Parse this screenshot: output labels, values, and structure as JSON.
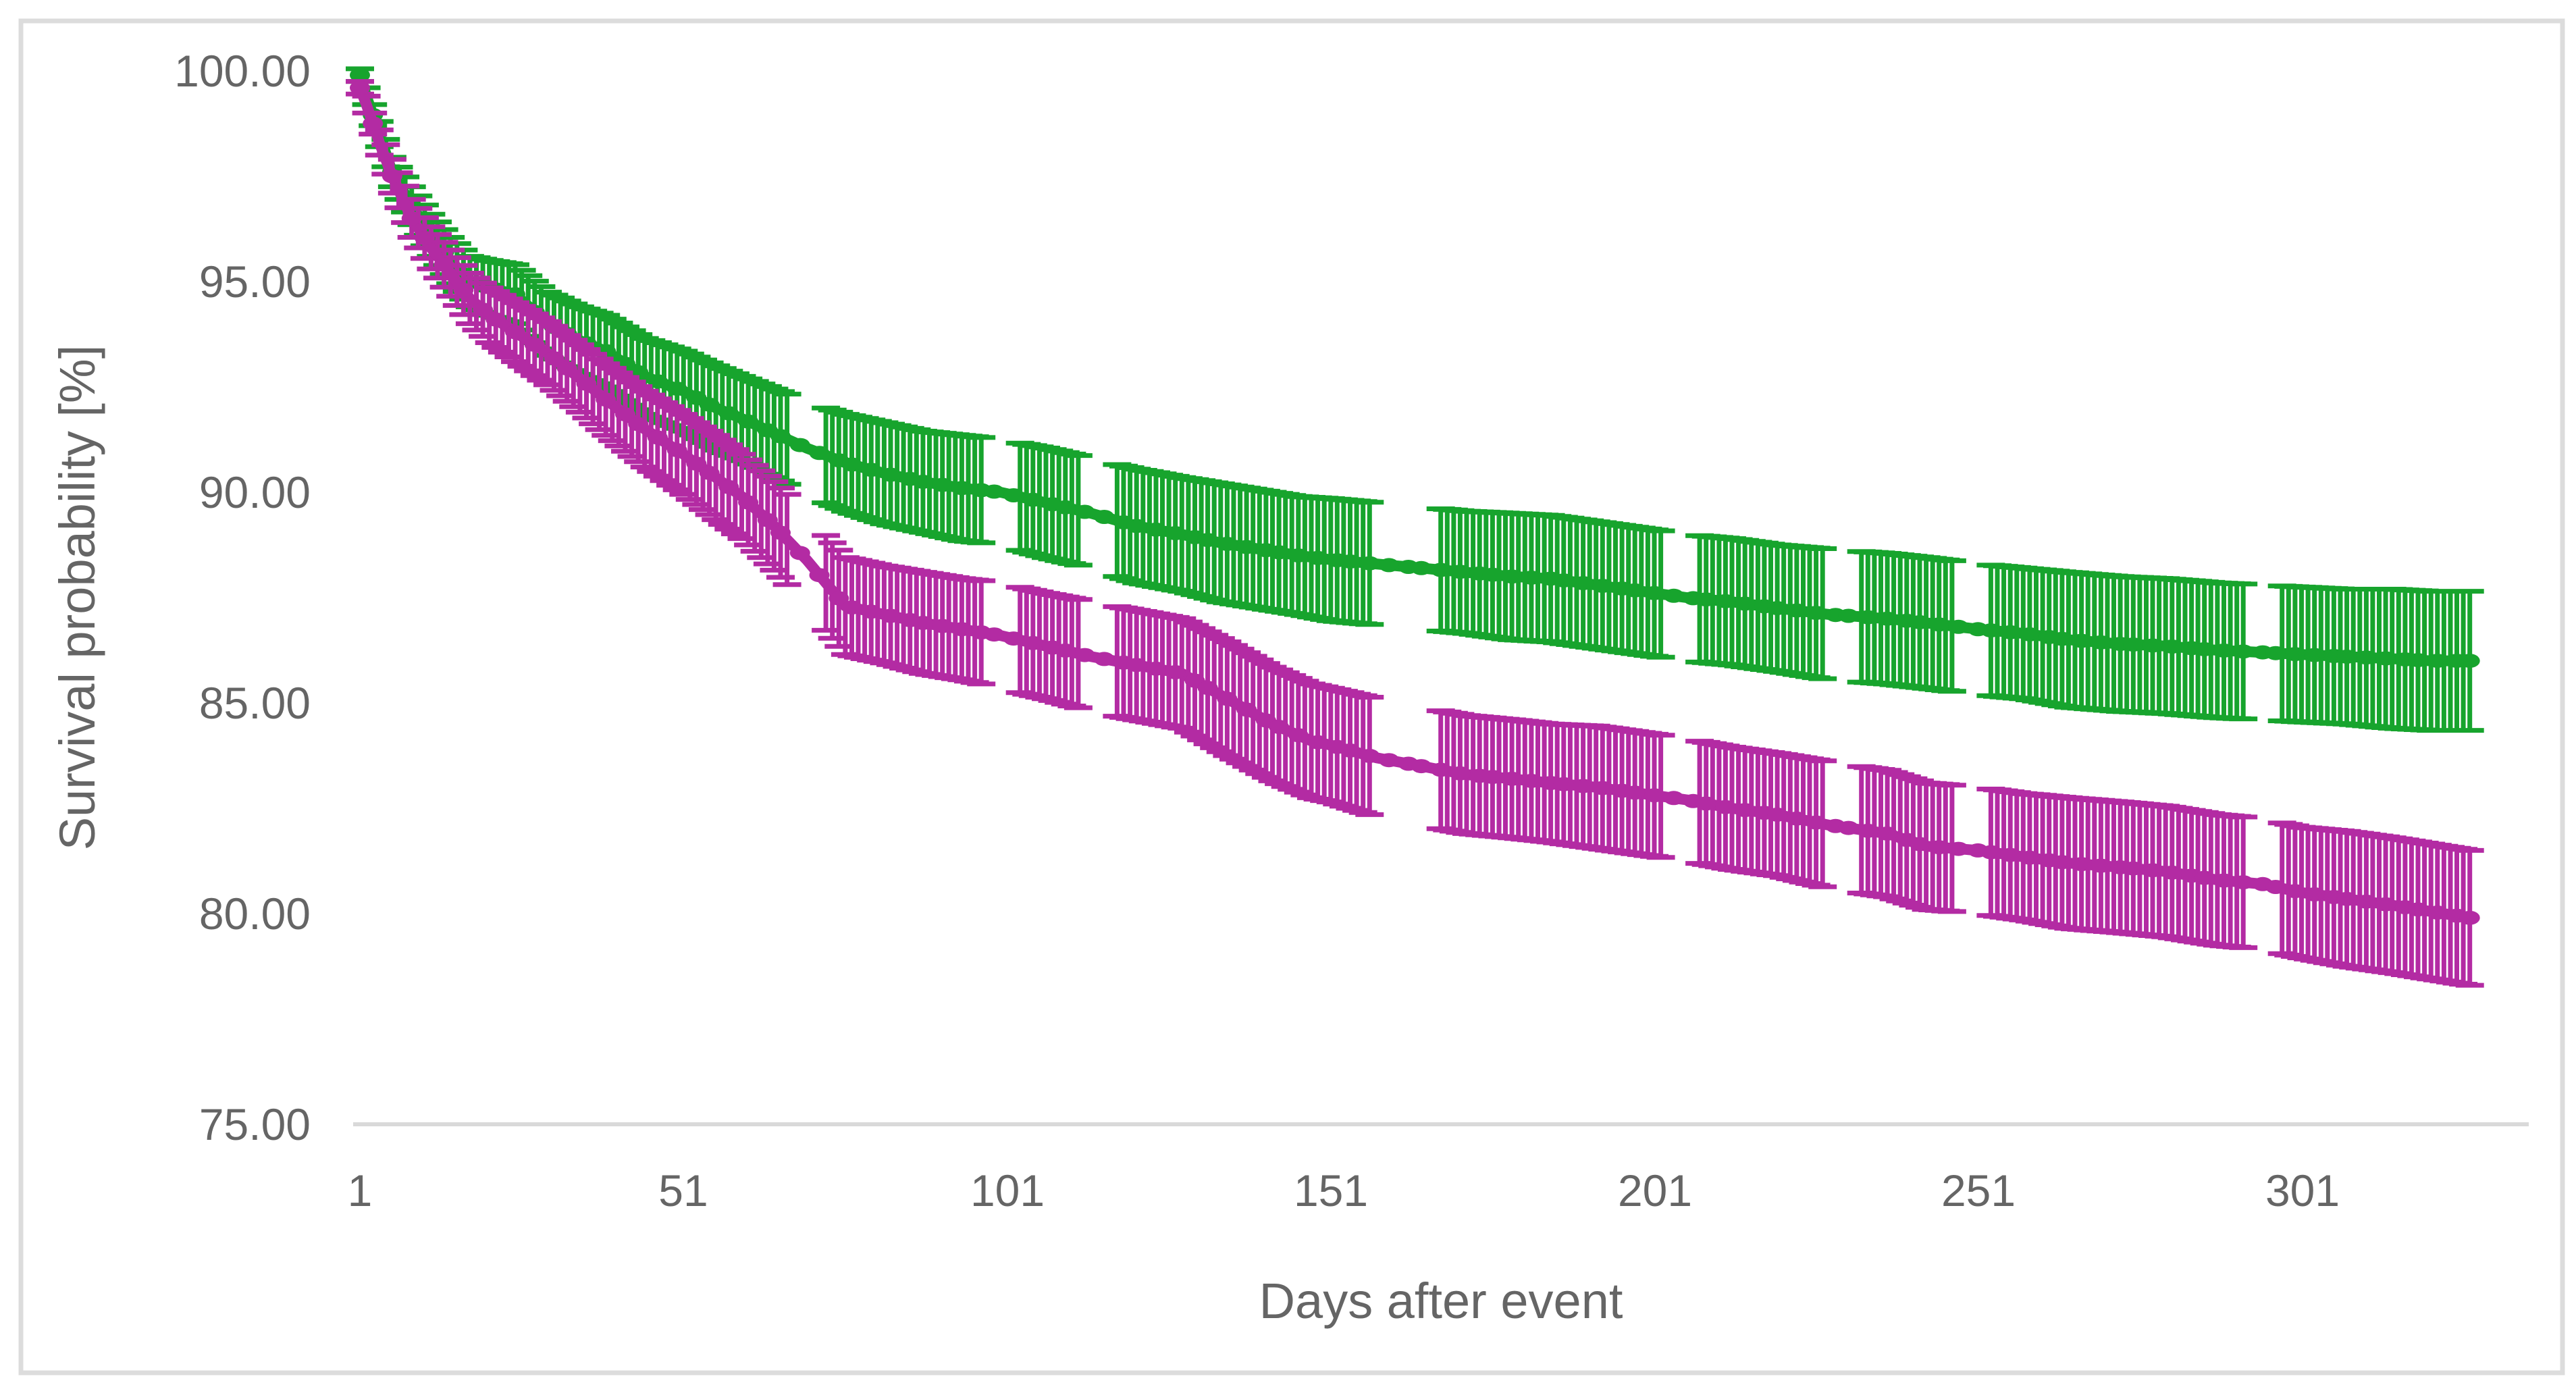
{
  "chart_data": {
    "type": "line",
    "title": "",
    "xlabel": "Days after event",
    "ylabel": "Survival probability [%]",
    "x_tick_labels": [
      "1",
      "51",
      "101",
      "151",
      "201",
      "251",
      "301"
    ],
    "x_tick_values": [
      1,
      51,
      101,
      151,
      201,
      251,
      301
    ],
    "y_tick_labels": [
      "100.00",
      "95.00",
      "90.00",
      "85.00",
      "80.00",
      "75.00"
    ],
    "y_tick_values": [
      100,
      95,
      90,
      85,
      80,
      75
    ],
    "xlim": [
      1,
      334
    ],
    "ylim": [
      75,
      100
    ],
    "grid": "off",
    "legend": "none",
    "error_bars": "vertical, per-day, with caps",
    "marker_style": "filled elliptical dots merged into thick line",
    "series": [
      {
        "name": "upper-green-survival-curve",
        "color": "#17A42D",
        "days": [
          1,
          2,
          4,
          6,
          9,
          12,
          15,
          18,
          21,
          25,
          30,
          35,
          39,
          45,
          51,
          56,
          60,
          65,
          70,
          76,
          82,
          88,
          94,
          100,
          107,
          114,
          121,
          128,
          134,
          140,
          146,
          151,
          158,
          165,
          172,
          179,
          185,
          192,
          199,
          206,
          213,
          220,
          228,
          237,
          243,
          251,
          258,
          265,
          273,
          280,
          288,
          295,
          301,
          308,
          315,
          321,
          327
        ],
        "values": [
          99.9,
          99.4,
          98.5,
          97.6,
          96.8,
          96.1,
          95.5,
          95.0,
          94.85,
          94.7,
          94.0,
          93.6,
          93.35,
          92.75,
          92.4,
          92.0,
          91.75,
          91.4,
          91.05,
          90.7,
          90.45,
          90.25,
          90.1,
          90.0,
          89.75,
          89.5,
          89.2,
          89.0,
          88.8,
          88.65,
          88.5,
          88.4,
          88.3,
          88.2,
          88.1,
          88.0,
          87.95,
          87.8,
          87.65,
          87.5,
          87.4,
          87.25,
          87.1,
          87.0,
          86.9,
          86.75,
          86.65,
          86.5,
          86.4,
          86.35,
          86.25,
          86.2,
          86.15,
          86.1,
          86.05,
          86.0,
          86.0
        ],
        "ci_half_width": [
          0.15,
          0.2,
          0.3,
          0.35,
          0.45,
          0.5,
          0.55,
          0.6,
          0.65,
          0.7,
          0.75,
          0.8,
          0.85,
          0.9,
          0.95,
          1.0,
          1.0,
          1.05,
          1.1,
          1.15,
          1.2,
          1.2,
          1.25,
          1.25,
          1.3,
          1.3,
          1.35,
          1.35,
          1.4,
          1.4,
          1.4,
          1.45,
          1.45,
          1.45,
          1.45,
          1.5,
          1.5,
          1.5,
          1.5,
          1.5,
          1.5,
          1.5,
          1.55,
          1.55,
          1.55,
          1.55,
          1.55,
          1.6,
          1.6,
          1.6,
          1.6,
          1.6,
          1.6,
          1.6,
          1.65,
          1.65,
          1.65
        ]
      },
      {
        "name": "lower-magenta-survival-curve",
        "color": "#B32BA3",
        "days": [
          1,
          2,
          4,
          6,
          9,
          12,
          15,
          18,
          21,
          25,
          30,
          35,
          39,
          45,
          51,
          56,
          60,
          65,
          70,
          76,
          82,
          88,
          94,
          100,
          107,
          114,
          121,
          128,
          135,
          142,
          148,
          151,
          158,
          165,
          172,
          179,
          185,
          192,
          199,
          206,
          213,
          220,
          228,
          237,
          243,
          251,
          258,
          265,
          273,
          280,
          288,
          295,
          301,
          308,
          315,
          321,
          327
        ],
        "values": [
          99.6,
          99.2,
          98.3,
          97.5,
          96.5,
          95.8,
          95.2,
          94.6,
          94.2,
          93.8,
          93.3,
          92.7,
          92.2,
          91.5,
          90.9,
          90.35,
          89.9,
          89.2,
          88.4,
          87.3,
          87.1,
          86.9,
          86.75,
          86.6,
          86.35,
          86.1,
          85.9,
          85.7,
          85.1,
          84.5,
          84.1,
          84.0,
          83.7,
          83.5,
          83.3,
          83.2,
          83.1,
          83.0,
          82.85,
          82.7,
          82.5,
          82.35,
          82.1,
          81.9,
          81.6,
          81.5,
          81.35,
          81.2,
          81.1,
          81.0,
          80.8,
          80.7,
          80.5,
          80.35,
          80.2,
          80.05,
          79.9
        ],
        "ci_half_width": [
          0.15,
          0.2,
          0.3,
          0.4,
          0.45,
          0.5,
          0.55,
          0.6,
          0.65,
          0.7,
          0.75,
          0.8,
          0.85,
          0.9,
          0.95,
          1.0,
          1.0,
          1.05,
          1.1,
          1.15,
          1.15,
          1.2,
          1.2,
          1.25,
          1.25,
          1.3,
          1.3,
          1.3,
          1.35,
          1.35,
          1.35,
          1.35,
          1.4,
          1.4,
          1.4,
          1.4,
          1.4,
          1.45,
          1.45,
          1.45,
          1.45,
          1.45,
          1.5,
          1.5,
          1.5,
          1.5,
          1.5,
          1.55,
          1.55,
          1.55,
          1.55,
          1.55,
          1.55,
          1.6,
          1.6,
          1.6,
          1.6
        ]
      }
    ]
  },
  "style": {
    "axis_label_color": "#656565",
    "axis_line_color": "#D9D9D9",
    "chart_border_color": "#DCDCDC",
    "background_color": "#FFFFFF"
  }
}
